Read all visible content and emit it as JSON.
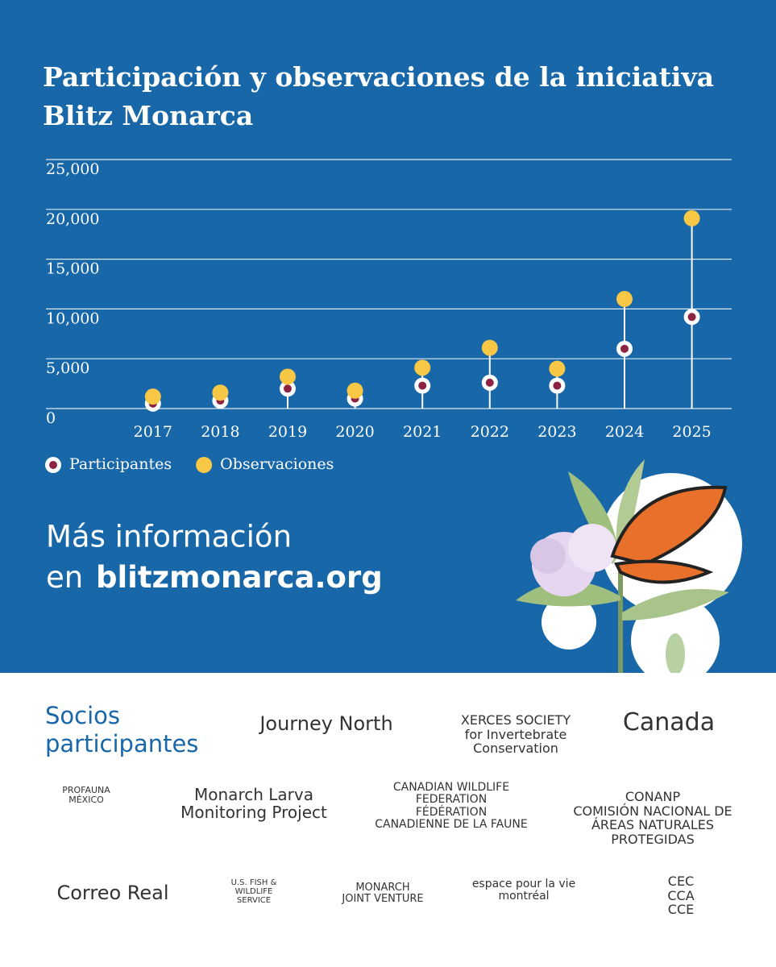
{
  "chart_data": {
    "type": "lollipop",
    "title": "Participación y observaciones de la iniciativa Blitz Monarca",
    "categories": [
      "2017",
      "2018",
      "2019",
      "2020",
      "2021",
      "2022",
      "2023",
      "2024",
      "2025"
    ],
    "series": [
      {
        "name": "Participantes",
        "color": "#8c2342",
        "values": [
          500,
          800,
          2000,
          1000,
          2300,
          2600,
          2300,
          6000,
          9200
        ]
      },
      {
        "name": "Observaciones",
        "color": "#f7c745",
        "values": [
          1200,
          1600,
          3200,
          1800,
          4100,
          6100,
          4000,
          11000,
          19100
        ]
      }
    ],
    "ylim": [
      0,
      25000
    ],
    "yticks": [
      0,
      {
        "value": 5000,
        "label": "5,000"
      },
      {
        "value": 10000,
        "label": "10,000"
      },
      {
        "value": 15000,
        "label": "15,000"
      },
      {
        "value": 20000,
        "label": "20,000"
      },
      {
        "value": 25000,
        "label": "25,000"
      }
    ],
    "grid": true
  },
  "info": {
    "line1": "Más información",
    "prefix": "en",
    "link": "blitzmonarca.org"
  },
  "partners": {
    "heading": "Socios participantes",
    "logos": [
      {
        "lines": [
          "Journey North"
        ]
      },
      {
        "lines": [
          "XERCES SOCIETY",
          "for Invertebrate Conservation"
        ]
      },
      {
        "lines": [
          "Canada"
        ]
      },
      {
        "lines": [
          "PROFAUNA",
          "MÉXICO"
        ]
      },
      {
        "lines": [
          "Monarch Larva",
          "Monitoring Project"
        ]
      },
      {
        "lines": [
          "CANADIAN WILDLIFE",
          "FEDERATION",
          "FÉDÉRATION",
          "CANADIENNE DE LA FAUNE"
        ]
      },
      {
        "lines": [
          "CONANP",
          "COMISIÓN NACIONAL DE ÁREAS NATURALES PROTEGIDAS"
        ]
      },
      {
        "lines": [
          "Correo Real"
        ]
      },
      {
        "lines": [
          "U.S. FISH & WILDLIFE SERVICE"
        ]
      },
      {
        "lines": [
          "MONARCH",
          "JOINT VENTURE"
        ]
      },
      {
        "lines": [
          "espace pour la vie montréal"
        ]
      },
      {
        "lines": [
          "CEC",
          "CCA",
          "CCE"
        ]
      }
    ]
  }
}
